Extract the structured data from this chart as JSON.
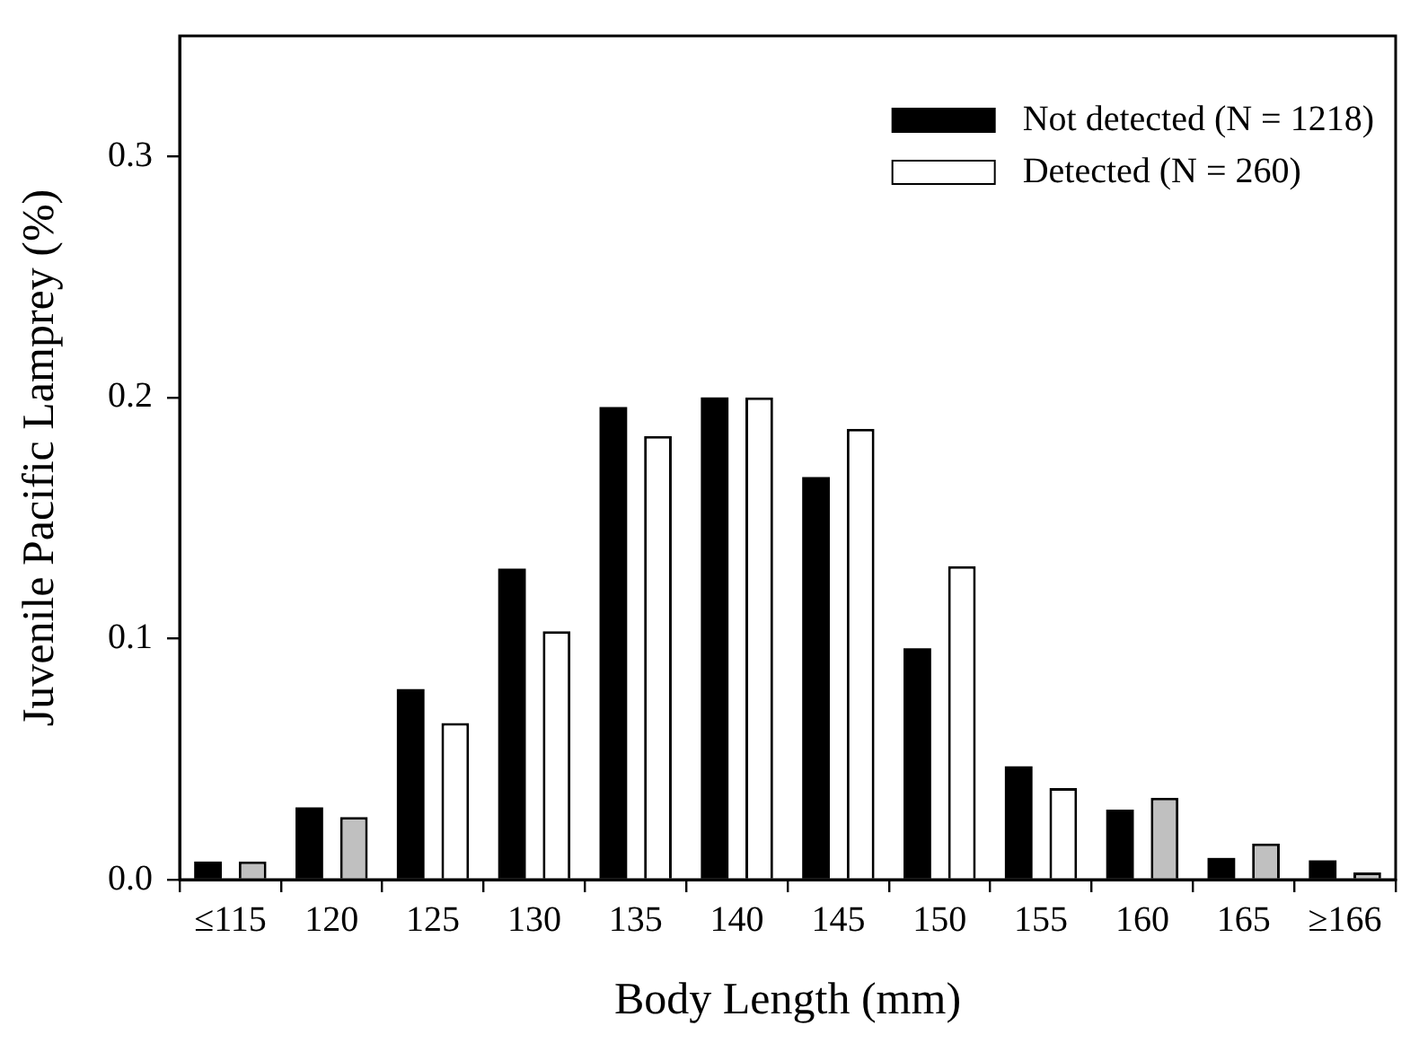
{
  "chart_data": {
    "type": "bar",
    "xlabel": "Body Length (mm)",
    "ylabel": "Juvenile Pacific Lamprey (%)",
    "categories": [
      "≤115",
      "120",
      "125",
      "130",
      "135",
      "140",
      "145",
      "150",
      "155",
      "160",
      "165",
      "≥166"
    ],
    "series": [
      {
        "name": "Not detected (N = 1218)",
        "color": "#000000",
        "values": [
          0.0075,
          0.03,
          0.079,
          0.129,
          0.196,
          0.2,
          0.167,
          0.096,
          0.047,
          0.029,
          0.009,
          0.008
        ]
      },
      {
        "name": "Detected (N = 260)",
        "color": "#ffffff",
        "colors": [
          "#c0c0c0",
          "#c0c0c0",
          "#ffffff",
          "#ffffff",
          "#ffffff",
          "#ffffff",
          "#ffffff",
          "#ffffff",
          "#ffffff",
          "#c0c0c0",
          "#c0c0c0",
          "#c0c0c0"
        ],
        "values": [
          0.0075,
          0.026,
          0.065,
          0.103,
          0.184,
          0.2,
          0.187,
          0.13,
          0.038,
          0.034,
          0.015,
          0.003
        ]
      }
    ],
    "ylim": [
      0,
      0.35
    ],
    "yticks": [
      {
        "value": 0,
        "label": "0.0"
      },
      0.1,
      0.2,
      0.3
    ],
    "grid": false,
    "legend": "top right"
  }
}
